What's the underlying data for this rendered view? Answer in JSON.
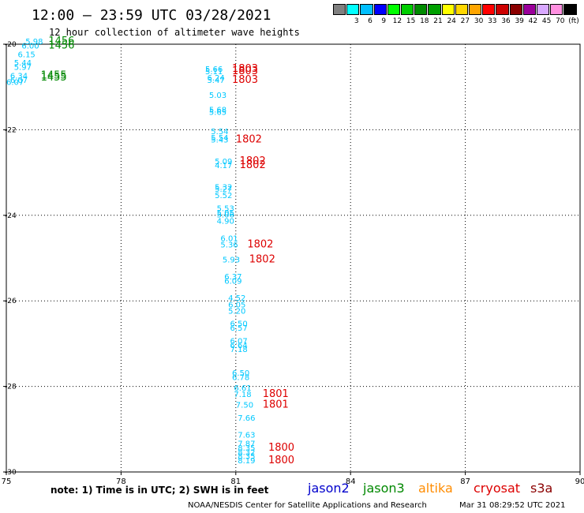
{
  "header": {
    "title": "12:00 – 23:59 UTC 03/28/2021",
    "subtitle": "12 hour collection of altimeter wave heights"
  },
  "legend": {
    "swatches": [
      {
        "color": "#808080",
        "label": ""
      },
      {
        "color": "#00ffff",
        "label": "3"
      },
      {
        "color": "#00bfff",
        "label": "6"
      },
      {
        "color": "#0000ff",
        "label": "9"
      },
      {
        "color": "#00ff00",
        "label": "12"
      },
      {
        "color": "#00cd00",
        "label": "15"
      },
      {
        "color": "#008b00",
        "label": "18"
      },
      {
        "color": "#00a000",
        "label": "21"
      },
      {
        "color": "#ffff00",
        "label": "24"
      },
      {
        "color": "#ffd700",
        "label": "27"
      },
      {
        "color": "#ffa500",
        "label": "30"
      },
      {
        "color": "#ff0000",
        "label": "33"
      },
      {
        "color": "#cd0000",
        "label": "36"
      },
      {
        "color": "#8b0000",
        "label": "39"
      },
      {
        "color": "#9b009b",
        "label": "42"
      },
      {
        "color": "#d8a8ff",
        "label": "45"
      },
      {
        "color": "#ff90e0",
        "label": "70"
      },
      {
        "color": "#000000",
        "label": "(ft)"
      }
    ]
  },
  "footer": {
    "note": "note: 1) Time is in UTC; 2) SWH is in feet",
    "credit": "NOAA/NESDIS Center for Satellite Applications and Research",
    "timestamp": "Mar 31 08:29:52 UTC 2021",
    "satellites": [
      {
        "name": "jason2",
        "color": "#0000cc"
      },
      {
        "name": "jason3",
        "color": "#008800"
      },
      {
        "name": "altika",
        "color": "#ff8c00"
      },
      {
        "name": "cryosat",
        "color": "#dd0000"
      },
      {
        "name": "s3a",
        "color": "#8b0000"
      }
    ]
  },
  "chart_data": {
    "type": "scatter",
    "title": "12:00 – 23:59 UTC 03/28/2021",
    "xlim": [
      75,
      90
    ],
    "ylim": [
      -30,
      -20
    ],
    "xticks": [
      75,
      78,
      81,
      84,
      87,
      90
    ],
    "yticks": [
      -20,
      -22,
      -24,
      -26,
      -28,
      -30
    ],
    "grid": true,
    "series": [
      {
        "name": "jason3",
        "color": "#008800",
        "swh_color": "#00c8ff",
        "points": [
          {
            "x": 75.5,
            "y": -20.0,
            "label": "5.98"
          },
          {
            "x": 75.4,
            "y": -20.1,
            "label": "6.00"
          },
          {
            "x": 75.3,
            "y": -20.3,
            "label": "6.15"
          },
          {
            "x": 75.2,
            "y": -20.5,
            "label": "5.44"
          },
          {
            "x": 75.2,
            "y": -20.6,
            "label": "5.97"
          },
          {
            "x": 75.1,
            "y": -20.8,
            "label": "6.34"
          },
          {
            "x": 75.1,
            "y": -20.9,
            "label": "6.07"
          },
          {
            "x": 75.0,
            "y": -20.95,
            "label": "6.07"
          }
        ],
        "time_labels": [
          {
            "x": 76.1,
            "y": -20.0,
            "label": "1456"
          },
          {
            "x": 76.1,
            "y": -20.1,
            "label": "1456"
          },
          {
            "x": 75.9,
            "y": -20.8,
            "label": "1455"
          },
          {
            "x": 75.9,
            "y": -20.85,
            "label": "1455"
          }
        ]
      },
      {
        "name": "cryosat",
        "color": "#dd0000",
        "swh_color": "#00c8ff",
        "points": [
          {
            "x": 80.2,
            "y": -20.65,
            "label": "5.66"
          },
          {
            "x": 80.2,
            "y": -20.7,
            "label": "5.11"
          },
          {
            "x": 80.25,
            "y": -20.85,
            "label": "6.24"
          },
          {
            "x": 80.25,
            "y": -20.9,
            "label": "5.47"
          },
          {
            "x": 80.3,
            "y": -21.25,
            "label": "5.03"
          },
          {
            "x": 80.3,
            "y": -21.6,
            "label": "5.68"
          },
          {
            "x": 80.3,
            "y": -21.65,
            "label": "5.65"
          },
          {
            "x": 80.35,
            "y": -22.1,
            "label": "5.54"
          },
          {
            "x": 80.35,
            "y": -22.25,
            "label": "5.54"
          },
          {
            "x": 80.35,
            "y": -22.3,
            "label": "5.43"
          },
          {
            "x": 80.45,
            "y": -22.8,
            "label": "5.09"
          },
          {
            "x": 80.45,
            "y": -22.9,
            "label": "4.17"
          },
          {
            "x": 80.45,
            "y": -23.4,
            "label": "5.32"
          },
          {
            "x": 80.45,
            "y": -23.45,
            "label": "5.27"
          },
          {
            "x": 80.45,
            "y": -23.6,
            "label": "5.52"
          },
          {
            "x": 80.5,
            "y": -23.9,
            "label": "5.53"
          },
          {
            "x": 80.5,
            "y": -24.0,
            "label": "5.05"
          },
          {
            "x": 80.5,
            "y": -24.05,
            "label": "5.06"
          },
          {
            "x": 80.5,
            "y": -24.2,
            "label": "4.90"
          },
          {
            "x": 80.6,
            "y": -24.6,
            "label": "6.01"
          },
          {
            "x": 80.6,
            "y": -24.75,
            "label": "5.36"
          },
          {
            "x": 80.65,
            "y": -25.1,
            "label": "5.93"
          },
          {
            "x": 80.7,
            "y": -25.5,
            "label": "6.37"
          },
          {
            "x": 80.7,
            "y": -25.6,
            "label": "6.09"
          },
          {
            "x": 80.8,
            "y": -26.0,
            "label": "4.52"
          },
          {
            "x": 80.8,
            "y": -26.15,
            "label": "6.05"
          },
          {
            "x": 80.8,
            "y": -26.3,
            "label": "5.20"
          },
          {
            "x": 80.85,
            "y": -26.6,
            "label": "6.50"
          },
          {
            "x": 80.85,
            "y": -26.7,
            "label": "6.57"
          },
          {
            "x": 80.85,
            "y": -27.0,
            "label": "6.07"
          },
          {
            "x": 80.85,
            "y": -27.1,
            "label": "6.64"
          },
          {
            "x": 80.85,
            "y": -27.2,
            "label": "7.18"
          },
          {
            "x": 80.9,
            "y": -27.75,
            "label": "6.50"
          },
          {
            "x": 80.9,
            "y": -27.85,
            "label": "6.78"
          },
          {
            "x": 80.95,
            "y": -28.1,
            "label": "6.61"
          },
          {
            "x": 80.95,
            "y": -28.25,
            "label": "7.18"
          },
          {
            "x": 81.0,
            "y": -28.5,
            "label": "7.50"
          },
          {
            "x": 81.05,
            "y": -28.8,
            "label": "7.66"
          },
          {
            "x": 81.05,
            "y": -29.2,
            "label": "7.63"
          },
          {
            "x": 81.05,
            "y": -29.4,
            "label": "7.87"
          },
          {
            "x": 81.05,
            "y": -29.5,
            "label": "8.35"
          },
          {
            "x": 81.05,
            "y": -29.6,
            "label": "8.32"
          },
          {
            "x": 81.05,
            "y": -29.7,
            "label": "8.35"
          },
          {
            "x": 81.05,
            "y": -29.8,
            "label": "8.19"
          }
        ],
        "time_labels": [
          {
            "x": 80.9,
            "y": -20.65,
            "label": "1803"
          },
          {
            "x": 80.9,
            "y": -20.7,
            "label": "1803"
          },
          {
            "x": 80.9,
            "y": -20.9,
            "label": "1803"
          },
          {
            "x": 81.0,
            "y": -22.3,
            "label": "1802"
          },
          {
            "x": 81.1,
            "y": -22.8,
            "label": "1802"
          },
          {
            "x": 81.1,
            "y": -22.9,
            "label": "1802"
          },
          {
            "x": 81.3,
            "y": -24.75,
            "label": "1802"
          },
          {
            "x": 81.35,
            "y": -25.1,
            "label": "1802"
          },
          {
            "x": 81.7,
            "y": -28.25,
            "label": "1801"
          },
          {
            "x": 81.7,
            "y": -28.5,
            "label": "1801"
          },
          {
            "x": 81.85,
            "y": -29.5,
            "label": "1800"
          },
          {
            "x": 81.85,
            "y": -29.8,
            "label": "1800"
          }
        ]
      }
    ]
  }
}
